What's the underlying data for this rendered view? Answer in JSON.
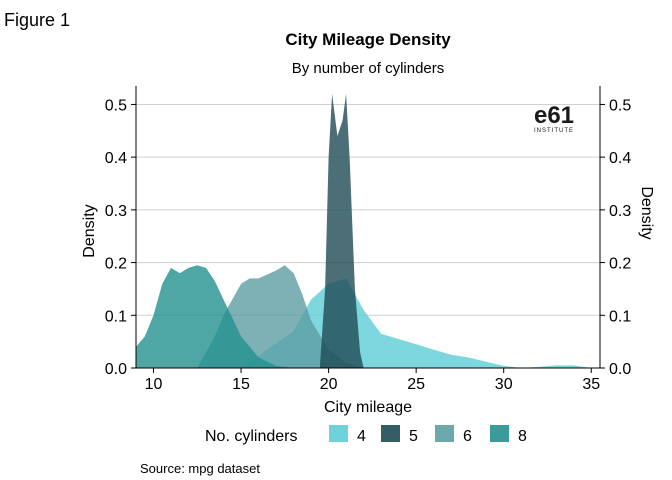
{
  "figure_label": "Figure 1",
  "source": "Source: mpg dataset",
  "logo": {
    "text": "e61",
    "subtext": "INSTITUTE",
    "color": "#1a1a1a"
  },
  "chart_data": {
    "type": "area",
    "title": "City Mileage Density",
    "subtitle": "By number of cylinders",
    "xlabel": "City mileage",
    "ylabel": "Density",
    "ylabel_right": "Density",
    "xlim": [
      9,
      35.5
    ],
    "ylim": [
      0,
      0.535
    ],
    "xticks": [
      10,
      15,
      20,
      25,
      30,
      35
    ],
    "yticks": [
      0.0,
      0.1,
      0.2,
      0.3,
      0.4,
      0.5
    ],
    "ytick_labels": [
      "0.0",
      "0.1",
      "0.2",
      "0.3",
      "0.4",
      "0.5"
    ],
    "grid": "horizontal",
    "legend_title": "No. cylinders",
    "legend_position": "bottom",
    "series": [
      {
        "name": "4",
        "color": "#5ecdd6",
        "x": [
          9,
          15,
          18,
          19,
          20,
          21,
          22,
          23,
          24,
          25,
          26,
          27,
          28,
          29,
          30,
          31,
          32,
          33,
          34,
          35
        ],
        "y": [
          0,
          0,
          0.07,
          0.13,
          0.16,
          0.17,
          0.11,
          0.065,
          0.055,
          0.045,
          0.035,
          0.025,
          0.02,
          0.012,
          0.004,
          0,
          0.002,
          0.005,
          0.005,
          0
        ]
      },
      {
        "name": "6",
        "color": "#5c9ea3",
        "x": [
          12.5,
          13.5,
          14,
          15,
          15.5,
          16,
          17,
          17.5,
          18,
          18.5,
          19,
          20,
          21,
          22
        ],
        "y": [
          0,
          0.06,
          0.1,
          0.16,
          0.17,
          0.17,
          0.185,
          0.195,
          0.18,
          0.14,
          0.09,
          0.035,
          0.01,
          0
        ],
        "note": "6-cylinder density"
      },
      {
        "name": "8",
        "color": "#23918f",
        "x": [
          9,
          9.5,
          10,
          10.5,
          11,
          11.5,
          12,
          12.5,
          13,
          13.5,
          14,
          15,
          16,
          17,
          18,
          19
        ],
        "y": [
          0.04,
          0.06,
          0.1,
          0.16,
          0.19,
          0.18,
          0.19,
          0.195,
          0.19,
          0.165,
          0.13,
          0.06,
          0.02,
          0.004,
          0,
          0
        ]
      },
      {
        "name": "5",
        "color": "#1f4b55",
        "x": [
          19.5,
          19.8,
          20,
          20.2,
          20.5,
          20.8,
          21,
          21.2,
          21.5,
          21.8,
          22
        ],
        "y": [
          0,
          0.15,
          0.4,
          0.52,
          0.44,
          0.47,
          0.52,
          0.4,
          0.15,
          0.03,
          0
        ]
      }
    ]
  }
}
